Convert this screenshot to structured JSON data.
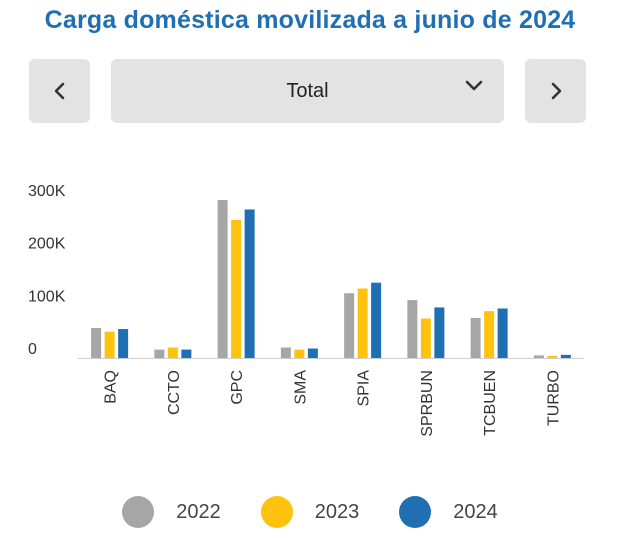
{
  "header": {
    "title": "Carga doméstica movilizada a junio de 2024"
  },
  "controls": {
    "prev_icon": "chevron-left-icon",
    "next_icon": "chevron-right-icon",
    "selector_value": "Total",
    "selector_icon": "chevron-down-icon"
  },
  "chart_data": {
    "type": "bar",
    "title": "Carga doméstica movilizada a junio de 2024",
    "categories": [
      "BAQ",
      "CCTO",
      "GPC",
      "SMA",
      "SPIA",
      "SPRBUN",
      "TCBUEN",
      "TURBO"
    ],
    "series": [
      {
        "name": "2022",
        "color": "#a6a6a6",
        "values": [
          57000,
          16000,
          300000,
          20000,
          123000,
          110000,
          76000,
          5000
        ]
      },
      {
        "name": "2023",
        "color": "#ffc20e",
        "values": [
          50000,
          20000,
          262000,
          16000,
          132000,
          75000,
          89000,
          4000
        ]
      },
      {
        "name": "2024",
        "color": "#1f6fb2",
        "values": [
          55000,
          16000,
          282000,
          18000,
          143000,
          96000,
          94000,
          6000
        ]
      }
    ],
    "yticks": [
      0,
      100000,
      200000,
      300000
    ],
    "ytick_labels": [
      "0",
      "100K",
      "200K",
      "300K"
    ],
    "ylim": [
      0,
      330000
    ],
    "grid": false,
    "legend": "bottom"
  }
}
